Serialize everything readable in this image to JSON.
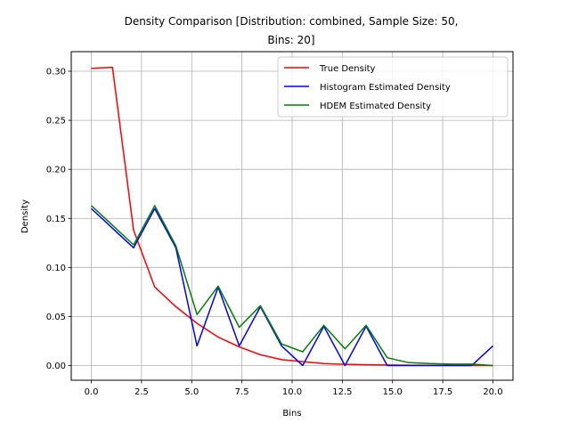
{
  "chart_data": {
    "type": "line",
    "title_lines": [
      "Density Comparison [Distribution: combined, Sample Size: 50,",
      "Bins: 20]"
    ],
    "xlabel": "Bins",
    "ylabel": "Density",
    "xlim": [
      -1.0,
      21.0
    ],
    "ylim": [
      -0.015,
      0.32
    ],
    "xticks": [
      0.0,
      2.5,
      5.0,
      7.5,
      10.0,
      12.5,
      15.0,
      17.5,
      20.0
    ],
    "xtick_labels": [
      "0.0",
      "2.5",
      "5.0",
      "7.5",
      "10.0",
      "12.5",
      "15.0",
      "17.5",
      "20.0"
    ],
    "yticks": [
      0.0,
      0.05,
      0.1,
      0.15,
      0.2,
      0.25,
      0.3
    ],
    "ytick_labels": [
      "0.00",
      "0.05",
      "0.10",
      "0.15",
      "0.20",
      "0.25",
      "0.30"
    ],
    "grid": true,
    "legend_position": "top-right",
    "x": [
      0,
      1.053,
      2.105,
      3.158,
      4.211,
      5.263,
      6.316,
      7.368,
      8.421,
      9.474,
      10.526,
      11.579,
      12.632,
      13.684,
      14.737,
      15.789,
      16.842,
      17.895,
      18.947,
      20.0
    ],
    "series": [
      {
        "name": "True Density",
        "color": "#ff0000",
        "values": [
          0.303,
          0.304,
          0.138,
          0.08,
          0.06,
          0.043,
          0.029,
          0.019,
          0.011,
          0.006,
          0.004,
          0.002,
          0.0012,
          0.0008,
          0.0005,
          0.0003,
          0.0002,
          0.0001,
          0.0001,
          0.0
        ]
      },
      {
        "name": "Histogram Estimated Density",
        "color": "#0000ff",
        "values": [
          0.16,
          0.14,
          0.12,
          0.16,
          0.12,
          0.02,
          0.08,
          0.02,
          0.06,
          0.02,
          0.0,
          0.04,
          0.0,
          0.04,
          0.0,
          0.0,
          0.0,
          0.0,
          0.0,
          0.02
        ]
      },
      {
        "name": "HDEM Estimated Density",
        "color": "#008000",
        "values": [
          0.163,
          0.143,
          0.123,
          0.163,
          0.122,
          0.052,
          0.081,
          0.039,
          0.061,
          0.022,
          0.014,
          0.041,
          0.017,
          0.041,
          0.008,
          0.003,
          0.002,
          0.0015,
          0.0015,
          0.0
        ]
      }
    ]
  }
}
